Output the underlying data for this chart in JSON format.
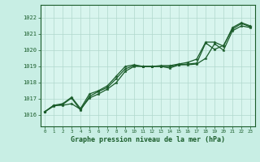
{
  "xlabel": "Graphe pression niveau de la mer (hPa)",
  "background_color": "#c8eee4",
  "plot_bg_color": "#d8f5ee",
  "grid_color": "#b0d8cc",
  "line_color": "#1a5c2a",
  "x_ticks": [
    0,
    1,
    2,
    3,
    4,
    5,
    6,
    7,
    8,
    9,
    10,
    11,
    12,
    13,
    14,
    15,
    16,
    17,
    18,
    19,
    20,
    21,
    22,
    23
  ],
  "ylim": [
    1015.3,
    1022.8
  ],
  "xlim": [
    -0.5,
    23.5
  ],
  "yticks": [
    1016,
    1017,
    1018,
    1019,
    1020,
    1021,
    1022
  ],
  "series1": [
    1016.2,
    1016.6,
    1016.6,
    1016.7,
    1016.35,
    1017.05,
    1017.3,
    1017.6,
    1018.0,
    1018.7,
    1019.0,
    1019.0,
    1019.0,
    1019.0,
    1018.9,
    1019.1,
    1019.1,
    1019.15,
    1019.5,
    1020.4,
    1020.0,
    1021.2,
    1021.5,
    1021.4
  ],
  "series2": [
    1016.2,
    1016.55,
    1016.65,
    1017.05,
    1016.3,
    1017.15,
    1017.45,
    1017.7,
    1018.25,
    1018.85,
    1019.05,
    1019.0,
    1019.0,
    1019.0,
    1019.0,
    1019.1,
    1019.15,
    1019.2,
    1020.45,
    1020.05,
    1020.3,
    1021.3,
    1021.65,
    1021.45
  ],
  "series3": [
    1016.2,
    1016.6,
    1016.7,
    1017.1,
    1016.4,
    1017.3,
    1017.5,
    1017.8,
    1018.4,
    1019.0,
    1019.1,
    1019.0,
    1019.0,
    1019.05,
    1019.05,
    1019.15,
    1019.25,
    1019.45,
    1020.5,
    1020.5,
    1020.25,
    1021.4,
    1021.7,
    1021.5
  ]
}
